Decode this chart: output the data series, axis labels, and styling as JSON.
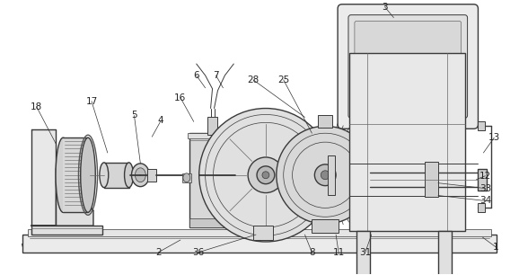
{
  "figure_width": 5.78,
  "figure_height": 3.06,
  "dpi": 100,
  "bg": "#ffffff",
  "lc": "#3a3a3a",
  "lc2": "#666666",
  "lw_main": 1.0,
  "lw_thin": 0.5,
  "lw_med": 0.7,
  "label_fs": 7.0,
  "label_color": "#222222"
}
